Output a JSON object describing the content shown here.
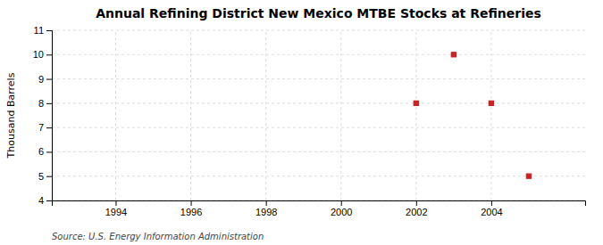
{
  "chart_data": {
    "type": "scatter",
    "title": "Annual Refining District New Mexico MTBE Stocks at Refineries",
    "y_label": "Thousand Barrels",
    "annotations": [
      "Source: U.S. Energy Information Administration"
    ],
    "x": [
      2002,
      2003,
      2004,
      2005
    ],
    "values": [
      8,
      10,
      8,
      5
    ],
    "color": "#cc2222",
    "marker": "square",
    "xlim": [
      1992.3,
      2006.5
    ],
    "ylim": [
      4,
      11
    ],
    "xticks": [
      1994,
      1996,
      1998,
      2000,
      2002,
      2004
    ],
    "yticks": [
      4,
      5,
      6,
      7,
      8,
      9,
      10,
      11
    ],
    "grid": true
  }
}
